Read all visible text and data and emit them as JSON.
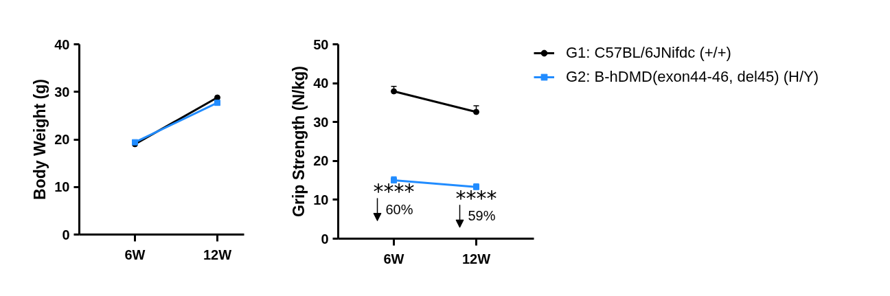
{
  "chart_data": [
    {
      "type": "line",
      "ylabel": "Body Weight (g)",
      "categories": [
        "6W",
        "12W"
      ],
      "series": [
        {
          "color": "#000000",
          "marker": "circle",
          "values": [
            19.0,
            28.8
          ]
        },
        {
          "color": "#218cff",
          "marker": "square",
          "values": [
            19.4,
            27.7
          ]
        }
      ],
      "ylim": [
        0,
        40
      ],
      "yticks": [
        0,
        10,
        20,
        30,
        40
      ]
    },
    {
      "type": "line",
      "ylabel": "Grip Strength (N/kg)",
      "categories": [
        "6W",
        "12W"
      ],
      "series": [
        {
          "name": "G1: C57BL/6JNifdc (+/+)",
          "color": "#000000",
          "marker": "circle",
          "values": [
            37.9,
            32.6
          ],
          "errors": [
            [
              37.9,
              39.2
            ],
            [
              32.6,
              34.2
            ]
          ]
        },
        {
          "name": "G2: B-hDMD(exon44-46, del45) (H/Y)",
          "color": "#218cff",
          "marker": "square",
          "values": [
            15.0,
            13.3
          ],
          "errors": [
            [
              15.0,
              15.9
            ],
            [
              13.3,
              14.1
            ]
          ]
        }
      ],
      "ylim": [
        0,
        50
      ],
      "yticks": [
        0,
        10,
        20,
        30,
        40,
        50
      ],
      "legend": "right",
      "annotations": [
        "****",
        "60%",
        "****",
        "59%"
      ]
    }
  ]
}
